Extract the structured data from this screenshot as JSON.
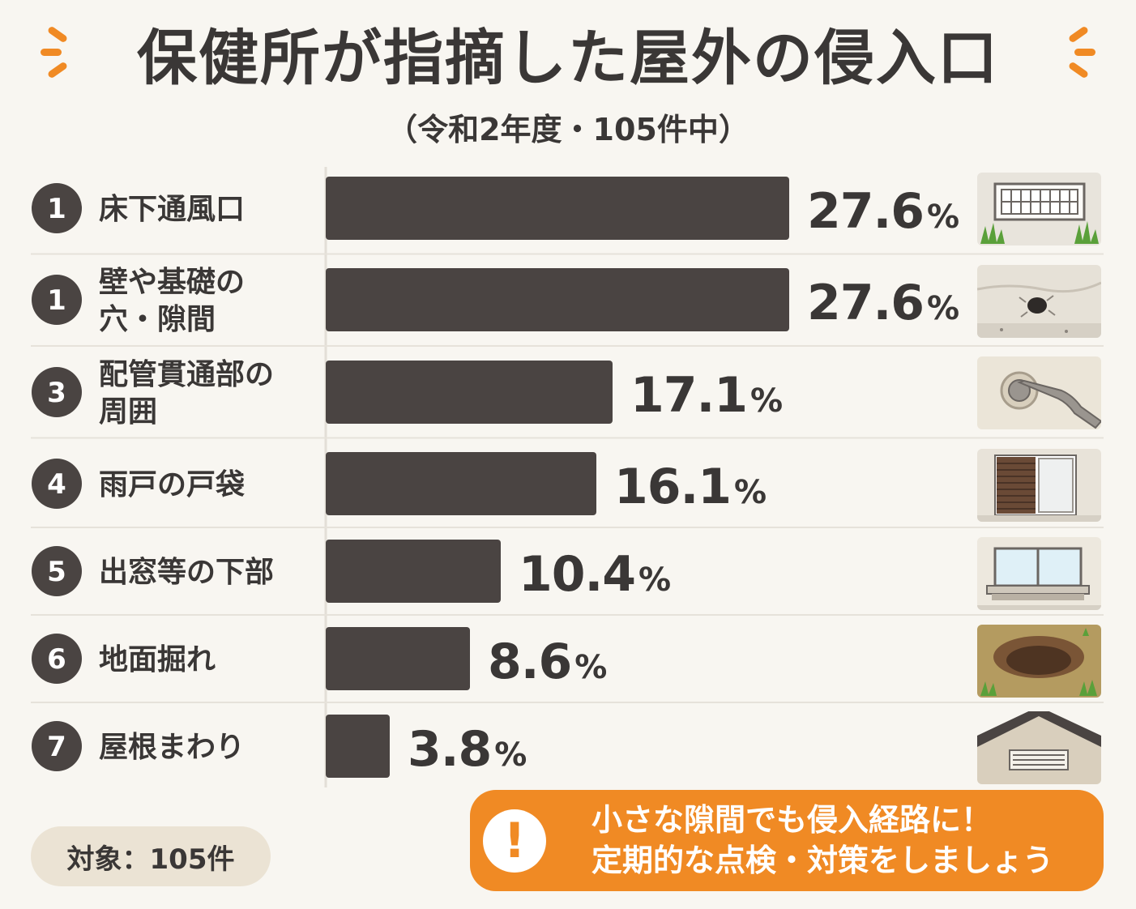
{
  "title": "保健所が指摘した屋外の侵入口",
  "subtitle": "（令和2年度・105件中）",
  "chart_data": {
    "type": "bar",
    "orientation": "horizontal",
    "title": "保健所が指摘した屋外の侵入口",
    "subtitle": "（令和2年度・105件中）",
    "unit": "%",
    "xlim": [
      0,
      27.6
    ],
    "bars": [
      {
        "rank": "1",
        "label_lines": [
          "床下通風口"
        ],
        "value": 27.6,
        "value_text": "27.6",
        "icon": "vent-icon"
      },
      {
        "rank": "1",
        "label_lines": [
          "壁や基礎の",
          "穴・隙間"
        ],
        "value": 27.6,
        "value_text": "27.6",
        "icon": "wall-hole-icon"
      },
      {
        "rank": "3",
        "label_lines": [
          "配管貫通部の",
          "周囲"
        ],
        "value": 17.1,
        "value_text": "17.1",
        "icon": "pipe-icon"
      },
      {
        "rank": "4",
        "label_lines": [
          "雨戸の戸袋"
        ],
        "value": 16.1,
        "value_text": "16.1",
        "icon": "shutter-box-icon"
      },
      {
        "rank": "5",
        "label_lines": [
          "出窓等の下部"
        ],
        "value": 10.4,
        "value_text": "10.4",
        "icon": "bay-window-icon"
      },
      {
        "rank": "6",
        "label_lines": [
          "地面掘れ"
        ],
        "value": 8.6,
        "value_text": "8.6",
        "icon": "ground-hole-icon"
      },
      {
        "rank": "7",
        "label_lines": [
          "屋根まわり"
        ],
        "value": 3.8,
        "value_text": "3.8",
        "icon": "roof-icon"
      }
    ]
  },
  "footer": {
    "target_label": "対象：105件"
  },
  "note": {
    "icon": "exclamation-icon",
    "line1": "小さな隙間でも侵入経路に！",
    "line2": "定期的な点検・対策をしましょう"
  },
  "colors": {
    "background": "#f8f6f1",
    "bar": "#4a4442",
    "text": "#3a3736",
    "accent": "#f08a24",
    "pill": "#ebe3d4"
  }
}
